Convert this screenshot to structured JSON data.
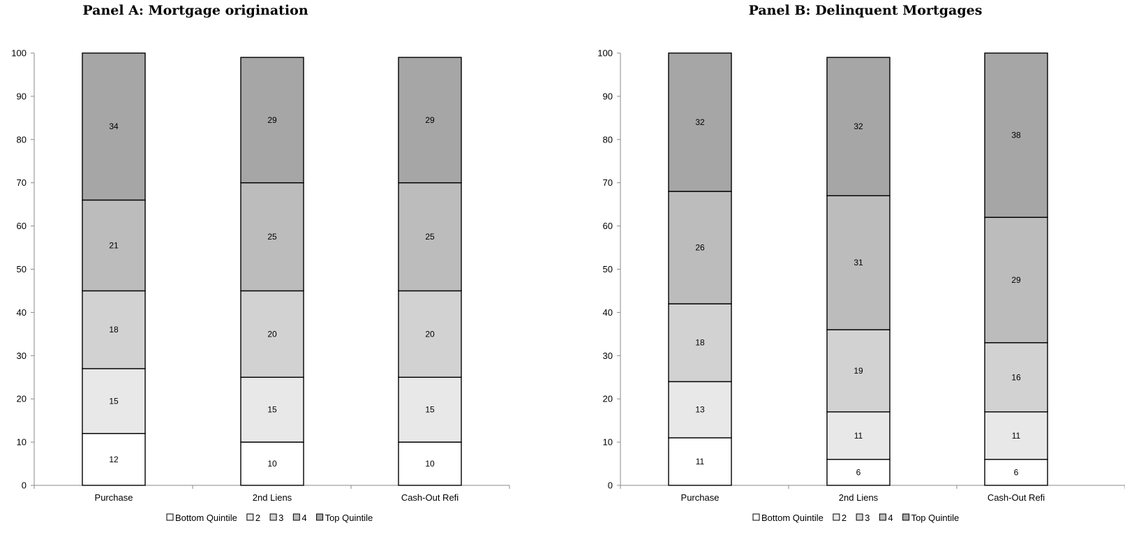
{
  "chart_data": [
    {
      "type": "bar",
      "stacked": true,
      "title": "Panel A: Mortgage origination",
      "categories": [
        "Purchase",
        "2nd Liens",
        "Cash-Out Refi"
      ],
      "ylim": [
        0,
        100
      ],
      "yticks": [
        0,
        10,
        20,
        30,
        40,
        50,
        60,
        70,
        80,
        90,
        100
      ],
      "grid": false,
      "legend_position": "bottom",
      "series": [
        {
          "name": "Bottom Quintile",
          "values": [
            12,
            10,
            10
          ],
          "color": "#ffffff"
        },
        {
          "name": "2",
          "values": [
            15,
            15,
            15
          ],
          "color": "#e8e8e8"
        },
        {
          "name": "3",
          "values": [
            18,
            20,
            20
          ],
          "color": "#d2d2d2"
        },
        {
          "name": "4",
          "values": [
            21,
            25,
            25
          ],
          "color": "#bcbcbc"
        },
        {
          "name": "Top Quintile",
          "values": [
            34,
            29,
            29
          ],
          "color": "#a6a6a6"
        }
      ]
    },
    {
      "type": "bar",
      "stacked": true,
      "title": "Panel B: Delinquent Mortgages",
      "categories": [
        "Purchase",
        "2nd Liens",
        "Cash-Out Refi"
      ],
      "ylim": [
        0,
        100
      ],
      "yticks": [
        0,
        10,
        20,
        30,
        40,
        50,
        60,
        70,
        80,
        90,
        100
      ],
      "grid": false,
      "legend_position": "bottom",
      "series": [
        {
          "name": "Bottom Quintile",
          "values": [
            11,
            6,
            6
          ],
          "color": "#ffffff"
        },
        {
          "name": "2",
          "values": [
            13,
            11,
            11
          ],
          "color": "#e8e8e8"
        },
        {
          "name": "3",
          "values": [
            18,
            19,
            16
          ],
          "color": "#d2d2d2"
        },
        {
          "name": "4",
          "values": [
            26,
            31,
            29
          ],
          "color": "#bcbcbc"
        },
        {
          "name": "Top Quintile",
          "values": [
            32,
            32,
            38
          ],
          "color": "#a6a6a6"
        }
      ]
    }
  ]
}
